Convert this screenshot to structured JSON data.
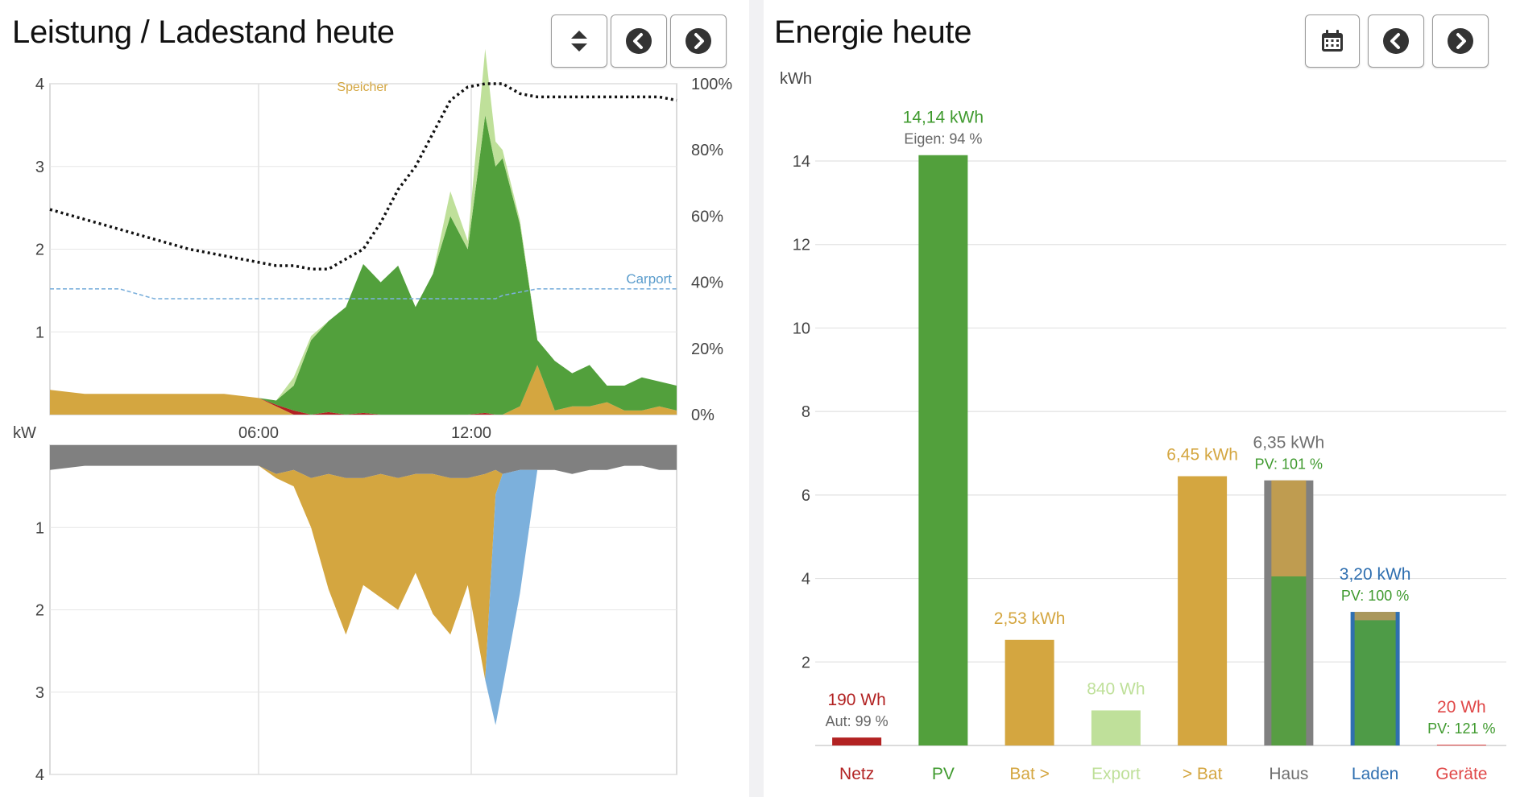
{
  "left": {
    "title": "Leistung / Ladestand heute",
    "buttons": {
      "toggle_icon": "sort-arrows-icon",
      "prev_icon": "chevron-left-circle-icon",
      "next_icon": "chevron-right-circle-icon"
    }
  },
  "right": {
    "title": "Energie heute",
    "buttons": {
      "calendar_icon": "calendar-icon",
      "prev_icon": "chevron-left-circle-icon",
      "next_icon": "chevron-right-circle-icon"
    }
  },
  "colors": {
    "netz": "#b22222",
    "pv": "#52a03c",
    "bat": "#d4a640",
    "export": "#bfe09a",
    "haus": "#808080",
    "laden": "#2f6fb0",
    "geraete": "#e04848",
    "carport": "#7cb0dc",
    "soc": "#111111"
  },
  "chart_data": [
    {
      "type": "area",
      "title": "Leistung / Ladestand heute",
      "unit_label": "kW",
      "x_range": [
        "00:00",
        "24:00"
      ],
      "x_ticks": [
        "06:00",
        "12:00"
      ],
      "upper": {
        "y_ticks": [
          "4",
          "3",
          "2",
          "1"
        ],
        "ylim": [
          0,
          4
        ],
        "y2_ticks": [
          "100%",
          "80%",
          "60%",
          "40%",
          "20%",
          "0%"
        ],
        "y2lim": [
          0,
          100
        ],
        "annotations": [
          "Speicher",
          "Carport"
        ],
        "time_h": [
          0,
          1,
          2,
          3,
          4,
          5,
          6,
          6.5,
          7,
          7.5,
          8,
          8.5,
          9,
          9.5,
          10,
          10.5,
          11,
          11.5,
          12,
          12.5,
          12.8,
          13,
          13.5,
          14,
          14.5,
          15,
          15.5,
          16,
          16.5,
          17,
          17.5,
          18
        ],
        "series": [
          {
            "name": "PV",
            "values": [
              0,
              0,
              0,
              0,
              0,
              0,
              0,
              0.05,
              0.3,
              0.9,
              1.1,
              1.3,
              1.8,
              1.6,
              1.8,
              1.3,
              1.7,
              2.4,
              2.0,
              3.6,
              3.0,
              3.1,
              2.2,
              0.3,
              0.6,
              0.4,
              0.5,
              0.2,
              0.3,
              0.4,
              0.3,
              0.3
            ]
          },
          {
            "name": "Export",
            "values": [
              0,
              0,
              0,
              0,
              0,
              0,
              0,
              0,
              0.1,
              0.05,
              0,
              0,
              0,
              0,
              0,
              0,
              0,
              0.3,
              0.1,
              0.8,
              0.3,
              0.1,
              0.05,
              0,
              0,
              0,
              0,
              0,
              0,
              0,
              0,
              0
            ]
          },
          {
            "name": "Bat >",
            "values": [
              0.3,
              0.25,
              0.25,
              0.25,
              0.25,
              0.25,
              0.2,
              0.1,
              0,
              0,
              0,
              0,
              0,
              0,
              0,
              0,
              0,
              0,
              0,
              0,
              0,
              0,
              0.1,
              0.6,
              0.05,
              0.1,
              0.1,
              0.15,
              0.05,
              0.05,
              0.1,
              0.05
            ]
          },
          {
            "name": "Netz",
            "values": [
              0,
              0,
              0,
              0,
              0,
              0,
              0,
              0.02,
              0.05,
              0,
              0.03,
              0,
              0.02,
              0,
              0,
              0,
              0,
              0,
              0,
              0.02,
              0,
              0,
              0,
              0,
              0,
              0,
              0,
              0,
              0,
              0,
              0,
              0
            ]
          },
          {
            "name": "Ladestand",
            "values": [
              62,
              59,
              56,
              53,
              50,
              48,
              46,
              45,
              45,
              44,
              44,
              47,
              50,
              58,
              68,
              75,
              85,
              95,
              99,
              100,
              100,
              100,
              97,
              96,
              96,
              96,
              96,
              96,
              96,
              96,
              96,
              95
            ]
          },
          {
            "name": "Carport",
            "values": [
              38,
              38,
              38,
              35,
              35,
              35,
              35,
              35,
              35,
              35,
              35,
              35,
              35,
              35,
              35,
              35,
              35,
              35,
              35,
              35,
              35,
              36,
              37,
              38,
              38,
              38,
              38,
              38,
              38,
              38,
              38,
              38
            ]
          }
        ]
      },
      "lower": {
        "y_ticks": [
          "1",
          "2",
          "3",
          "4"
        ],
        "ylim": [
          4,
          0
        ],
        "time_h": [
          0,
          1,
          2,
          3,
          4,
          5,
          6,
          6.5,
          7,
          7.5,
          8,
          8.5,
          9,
          9.5,
          10,
          10.5,
          11,
          11.5,
          12,
          12.5,
          12.8,
          13,
          13.5,
          14,
          14.5,
          15,
          15.5,
          16,
          16.5,
          17,
          17.5,
          18
        ],
        "series": [
          {
            "name": "Haus",
            "values": [
              0.3,
              0.25,
              0.25,
              0.25,
              0.25,
              0.25,
              0.25,
              0.35,
              0.3,
              0.4,
              0.35,
              0.4,
              0.4,
              0.35,
              0.4,
              0.35,
              0.35,
              0.4,
              0.4,
              0.35,
              0.3,
              0.35,
              0.3,
              0.3,
              0.3,
              0.35,
              0.3,
              0.3,
              0.25,
              0.25,
              0.3,
              0.3
            ]
          },
          {
            "name": "> Bat",
            "values": [
              0,
              0,
              0,
              0,
              0,
              0,
              0,
              0.05,
              0.2,
              0.6,
              1.4,
              1.9,
              1.3,
              1.5,
              1.6,
              1.2,
              1.7,
              1.9,
              1.3,
              2.5,
              0.3,
              0,
              0,
              0,
              0,
              0,
              0,
              0,
              0,
              0,
              0,
              0
            ]
          },
          {
            "name": "Laden",
            "values": [
              0,
              0,
              0,
              0,
              0,
              0,
              0,
              0,
              0,
              0,
              0,
              0,
              0,
              0,
              0,
              0,
              0,
              0,
              0,
              0,
              2.8,
              2.6,
              1.5,
              0,
              0,
              0,
              0,
              0,
              0,
              0,
              0,
              0
            ]
          }
        ]
      }
    },
    {
      "type": "bar",
      "title": "Energie heute",
      "ylabel": "kWh",
      "ylim": [
        0,
        15
      ],
      "y_ticks": [
        "2",
        "4",
        "6",
        "8",
        "10",
        "12",
        "14"
      ],
      "categories": [
        "Netz",
        "PV",
        "Bat >",
        "Export",
        "> Bat",
        "Haus",
        "Laden",
        "Geräte"
      ],
      "values": [
        0.19,
        14.14,
        2.53,
        0.84,
        6.45,
        6.35,
        3.2,
        0.02
      ],
      "value_labels": [
        "190 Wh",
        "14,14 kWh",
        "2,53 kWh",
        "840 Wh",
        "6,45 kWh",
        "6,35 kWh",
        "3,20 kWh",
        "20 Wh"
      ],
      "sub_labels": [
        "Aut: 99 %",
        "Eigen: 94 %",
        "",
        "",
        "",
        "PV: 101 %",
        "PV: 100 %",
        "PV: 121 %"
      ],
      "overlay": {
        "Haus": {
          "bat": 2.3,
          "pv": 4.05
        },
        "Laden": {
          "bat": 0.2,
          "pv": 3.0
        }
      }
    }
  ]
}
